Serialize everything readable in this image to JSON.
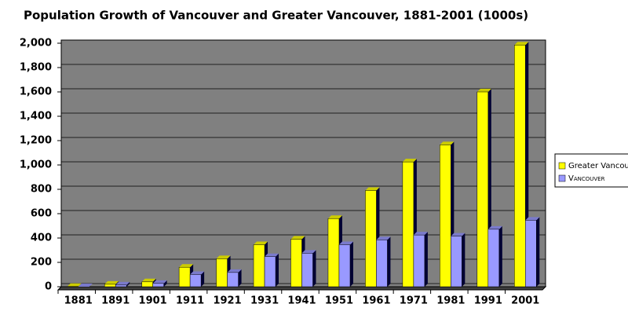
{
  "chart_data": {
    "type": "bar",
    "title": "Population Growth of Vancouver and Greater Vancouver, 1881-2001 (1000s)",
    "categories": [
      "1881",
      "1891",
      "1901",
      "1911",
      "1921",
      "1931",
      "1941",
      "1951",
      "1961",
      "1971",
      "1981",
      "1991",
      "2001"
    ],
    "series": [
      {
        "name": "Greater Vancouver",
        "color": "#ffff00",
        "values": [
          2,
          20,
          40,
          160,
          230,
          345,
          390,
          560,
          790,
          1025,
          1165,
          1600,
          1985
        ]
      },
      {
        "name": "Vancouver",
        "color": "#9999ff",
        "values": [
          0,
          14,
          27,
          100,
          117,
          247,
          275,
          345,
          385,
          425,
          415,
          472,
          546
        ]
      }
    ],
    "ylim": [
      0,
      2000
    ],
    "yticks": [
      0,
      200,
      400,
      600,
      800,
      {
        "value": 1000,
        "label": "1,000"
      },
      {
        "value": 1200,
        "label": "1,200"
      },
      {
        "value": 1400,
        "label": "1,400"
      },
      {
        "value": 1600,
        "label": "1,600"
      },
      {
        "value": 1800,
        "label": "1,800"
      },
      {
        "value": 2000,
        "label": "2,000"
      }
    ],
    "grid": true,
    "legend": "right",
    "background": "#808080"
  }
}
